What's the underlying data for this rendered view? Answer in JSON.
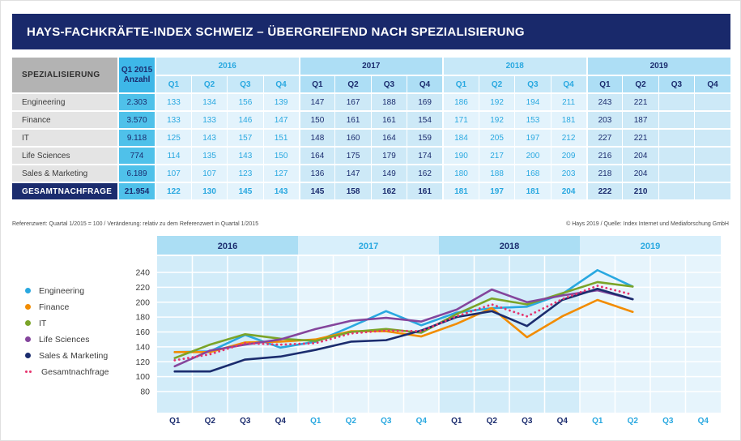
{
  "title": "HAYS-FACHKRÄFTE-INDEX SCHWEIZ – ÜBERGREIFEND NACH SPEZIALISIERUNG",
  "palette": {
    "navy": "#1b2c6e",
    "cyan": "#29a8e0",
    "title_bar": "#19296b",
    "band_dark": "#abdef4",
    "band_light": "#d8effb",
    "plot_dark": "#d2ecf9",
    "plot_light": "#e6f4fc"
  },
  "table": {
    "col1_header": "SPEZIALISIERUNG",
    "col2_header_line1": "Q1 2015",
    "col2_header_line2": "Anzahl",
    "years": [
      "2016",
      "2017",
      "2018",
      "2019"
    ],
    "quarters": [
      "Q1",
      "Q2",
      "Q3",
      "Q4"
    ],
    "rows": [
      {
        "label": "Engineering",
        "anzahl": "2.303",
        "values": [
          133,
          134,
          156,
          139,
          147,
          167,
          188,
          169,
          186,
          192,
          194,
          211,
          243,
          221,
          null,
          null
        ]
      },
      {
        "label": "Finance",
        "anzahl": "3.570",
        "values": [
          133,
          133,
          146,
          147,
          150,
          161,
          161,
          154,
          171,
          192,
          153,
          181,
          203,
          187,
          null,
          null
        ]
      },
      {
        "label": "IT",
        "anzahl": "9.118",
        "values": [
          125,
          143,
          157,
          151,
          148,
          160,
          164,
          159,
          184,
          205,
          197,
          212,
          227,
          221,
          null,
          null
        ]
      },
      {
        "label": "Life Sciences",
        "anzahl": "774",
        "values": [
          114,
          135,
          143,
          150,
          164,
          175,
          179,
          174,
          190,
          217,
          200,
          209,
          216,
          204,
          null,
          null
        ]
      },
      {
        "label": "Sales & Marketing",
        "anzahl": "6.189",
        "values": [
          107,
          107,
          123,
          127,
          136,
          147,
          149,
          162,
          180,
          188,
          168,
          203,
          218,
          204,
          null,
          null
        ]
      }
    ],
    "total_row": {
      "label": "GESAMTNACHFRAGE",
      "anzahl": "21.954",
      "values": [
        122,
        130,
        145,
        143,
        145,
        158,
        162,
        161,
        181,
        197,
        181,
        204,
        222,
        210,
        null,
        null
      ]
    }
  },
  "footnotes": {
    "left": "Referenzwert: Quartal 1/2015 = 100 / Veränderung: relativ zu dem Referenzwert in Quartal 1/2015",
    "right": "© Hays 2019 / Quelle: Index Internet und Mediaforschung GmbH"
  },
  "chart_data": {
    "type": "line",
    "title": "",
    "x_groups": [
      "2016",
      "2017",
      "2018",
      "2019"
    ],
    "x_quarters": [
      "Q1",
      "Q2",
      "Q3",
      "Q4"
    ],
    "ylim": [
      80,
      240
    ],
    "yticks": [
      240,
      220,
      200,
      180,
      160,
      140,
      120,
      100,
      80
    ],
    "grid": true,
    "legend_position": "left",
    "series": [
      {
        "name": "Engineering",
        "color": "#29a8e0",
        "style": "solid",
        "values": [
          133,
          134,
          156,
          139,
          147,
          167,
          188,
          169,
          186,
          192,
          194,
          211,
          243,
          221
        ]
      },
      {
        "name": "Finance",
        "color": "#f28c00",
        "style": "solid",
        "values": [
          133,
          133,
          146,
          147,
          150,
          161,
          161,
          154,
          171,
          192,
          153,
          181,
          203,
          187
        ]
      },
      {
        "name": "IT",
        "color": "#7ba428",
        "style": "solid",
        "values": [
          125,
          143,
          157,
          151,
          148,
          160,
          164,
          159,
          184,
          205,
          197,
          212,
          227,
          221
        ]
      },
      {
        "name": "Life Sciences",
        "color": "#84459c",
        "style": "solid",
        "values": [
          114,
          135,
          143,
          150,
          164,
          175,
          179,
          174,
          190,
          217,
          200,
          209,
          216,
          204
        ]
      },
      {
        "name": "Sales & Marketing",
        "color": "#1b2c6e",
        "style": "solid",
        "values": [
          107,
          107,
          123,
          127,
          136,
          147,
          149,
          162,
          180,
          188,
          168,
          203,
          218,
          204
        ]
      },
      {
        "name": "Gesamtnachfrage",
        "color": "#e6336e",
        "style": "dotted",
        "values": [
          122,
          130,
          145,
          143,
          145,
          158,
          162,
          161,
          181,
          197,
          181,
          204,
          222,
          210
        ]
      }
    ]
  }
}
